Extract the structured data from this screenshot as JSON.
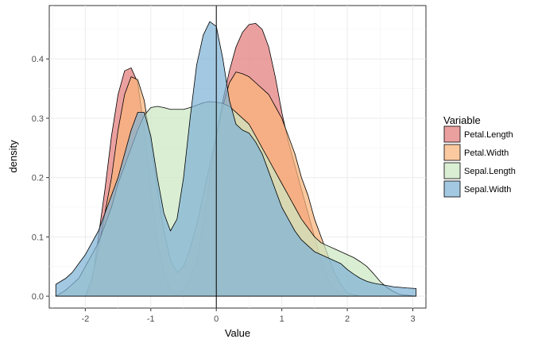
{
  "chart_data": {
    "type": "area",
    "xlabel": "Value",
    "ylabel": "density",
    "xlim": [
      -2.55,
      3.2
    ],
    "ylim": [
      -0.02,
      0.49
    ],
    "x_ticks": [
      -2,
      -1,
      0,
      1,
      2,
      3
    ],
    "x_tick_labels": [
      "-2",
      "-1",
      "0",
      "1",
      "2",
      "3"
    ],
    "y_ticks": [
      0.0,
      0.1,
      0.2,
      0.3,
      0.4
    ],
    "y_tick_labels": [
      "0.0",
      "0.1",
      "0.2",
      "0.3",
      "0.4"
    ],
    "vline_x": 0,
    "grid": true,
    "legend": {
      "title": "Variable",
      "placement": "right"
    },
    "series": [
      {
        "name": "Petal.Length",
        "color": "#E37B7B",
        "points": [
          [
            -2.45,
            0.0
          ],
          [
            -2.2,
            0.0
          ],
          [
            -2.0,
            0.0
          ],
          [
            -1.9,
            0.02
          ],
          [
            -1.8,
            0.1
          ],
          [
            -1.7,
            0.18
          ],
          [
            -1.6,
            0.27
          ],
          [
            -1.5,
            0.34
          ],
          [
            -1.4,
            0.38
          ],
          [
            -1.3,
            0.385
          ],
          [
            -1.2,
            0.36
          ],
          [
            -1.1,
            0.28
          ],
          [
            -1.0,
            0.18
          ],
          [
            -0.9,
            0.09
          ],
          [
            -0.8,
            0.04
          ],
          [
            -0.7,
            0.01
          ],
          [
            -0.6,
            0.003
          ],
          [
            -0.5,
            0.01
          ],
          [
            -0.4,
            0.03
          ],
          [
            -0.3,
            0.06
          ],
          [
            -0.2,
            0.12
          ],
          [
            -0.1,
            0.2
          ],
          [
            0.0,
            0.27
          ],
          [
            0.1,
            0.33
          ],
          [
            0.2,
            0.38
          ],
          [
            0.3,
            0.42
          ],
          [
            0.4,
            0.445
          ],
          [
            0.5,
            0.458
          ],
          [
            0.6,
            0.46
          ],
          [
            0.7,
            0.45
          ],
          [
            0.8,
            0.42
          ],
          [
            0.9,
            0.37
          ],
          [
            1.0,
            0.31
          ],
          [
            1.1,
            0.26
          ],
          [
            1.2,
            0.22
          ],
          [
            1.3,
            0.18
          ],
          [
            1.4,
            0.14
          ],
          [
            1.5,
            0.1
          ],
          [
            1.6,
            0.06
          ],
          [
            1.7,
            0.03
          ],
          [
            1.8,
            0.01
          ],
          [
            1.9,
            0.003
          ],
          [
            2.0,
            0.0
          ],
          [
            2.2,
            0.0
          ],
          [
            2.5,
            0.0
          ],
          [
            3.05,
            0.0
          ]
        ]
      },
      {
        "name": "Petal.Width",
        "color": "#F9B47A",
        "points": [
          [
            -2.45,
            0.0
          ],
          [
            -2.2,
            0.0
          ],
          [
            -2.0,
            0.0
          ],
          [
            -1.9,
            0.03
          ],
          [
            -1.8,
            0.08
          ],
          [
            -1.7,
            0.14
          ],
          [
            -1.6,
            0.2
          ],
          [
            -1.5,
            0.28
          ],
          [
            -1.4,
            0.34
          ],
          [
            -1.3,
            0.37
          ],
          [
            -1.2,
            0.365
          ],
          [
            -1.1,
            0.33
          ],
          [
            -1.0,
            0.26
          ],
          [
            -0.9,
            0.18
          ],
          [
            -0.8,
            0.11
          ],
          [
            -0.7,
            0.06
          ],
          [
            -0.6,
            0.04
          ],
          [
            -0.5,
            0.05
          ],
          [
            -0.4,
            0.08
          ],
          [
            -0.3,
            0.12
          ],
          [
            -0.2,
            0.17
          ],
          [
            -0.1,
            0.22
          ],
          [
            0.0,
            0.27
          ],
          [
            0.1,
            0.32
          ],
          [
            0.2,
            0.36
          ],
          [
            0.3,
            0.378
          ],
          [
            0.4,
            0.375
          ],
          [
            0.5,
            0.37
          ],
          [
            0.6,
            0.36
          ],
          [
            0.7,
            0.35
          ],
          [
            0.8,
            0.34
          ],
          [
            0.9,
            0.32
          ],
          [
            1.0,
            0.3
          ],
          [
            1.1,
            0.27
          ],
          [
            1.2,
            0.24
          ],
          [
            1.3,
            0.2
          ],
          [
            1.4,
            0.17
          ],
          [
            1.5,
            0.13
          ],
          [
            1.6,
            0.1
          ],
          [
            1.7,
            0.07
          ],
          [
            1.8,
            0.04
          ],
          [
            1.9,
            0.02
          ],
          [
            2.0,
            0.005
          ],
          [
            2.2,
            0.0
          ],
          [
            2.5,
            0.0
          ],
          [
            3.05,
            0.0
          ]
        ]
      },
      {
        "name": "Sepal.Length",
        "color": "#CCE8C4",
        "points": [
          [
            -2.45,
            0.0
          ],
          [
            -2.3,
            0.01
          ],
          [
            -2.2,
            0.02
          ],
          [
            -2.1,
            0.03
          ],
          [
            -2.0,
            0.05
          ],
          [
            -1.9,
            0.07
          ],
          [
            -1.8,
            0.09
          ],
          [
            -1.7,
            0.12
          ],
          [
            -1.6,
            0.15
          ],
          [
            -1.5,
            0.19
          ],
          [
            -1.4,
            0.22
          ],
          [
            -1.3,
            0.25
          ],
          [
            -1.2,
            0.28
          ],
          [
            -1.1,
            0.305
          ],
          [
            -1.0,
            0.318
          ],
          [
            -0.9,
            0.32
          ],
          [
            -0.8,
            0.318
          ],
          [
            -0.7,
            0.315
          ],
          [
            -0.6,
            0.315
          ],
          [
            -0.5,
            0.315
          ],
          [
            -0.4,
            0.318
          ],
          [
            -0.3,
            0.322
          ],
          [
            -0.2,
            0.326
          ],
          [
            -0.1,
            0.328
          ],
          [
            0.0,
            0.327
          ],
          [
            0.1,
            0.325
          ],
          [
            0.2,
            0.32
          ],
          [
            0.3,
            0.31
          ],
          [
            0.4,
            0.3
          ],
          [
            0.5,
            0.29
          ],
          [
            0.6,
            0.27
          ],
          [
            0.7,
            0.25
          ],
          [
            0.8,
            0.23
          ],
          [
            0.9,
            0.21
          ],
          [
            1.0,
            0.19
          ],
          [
            1.1,
            0.17
          ],
          [
            1.2,
            0.15
          ],
          [
            1.3,
            0.13
          ],
          [
            1.4,
            0.115
          ],
          [
            1.5,
            0.1
          ],
          [
            1.6,
            0.09
          ],
          [
            1.7,
            0.085
          ],
          [
            1.8,
            0.08
          ],
          [
            1.9,
            0.075
          ],
          [
            2.0,
            0.07
          ],
          [
            2.1,
            0.065
          ],
          [
            2.2,
            0.058
          ],
          [
            2.3,
            0.05
          ],
          [
            2.4,
            0.038
          ],
          [
            2.5,
            0.025
          ],
          [
            2.6,
            0.015
          ],
          [
            2.7,
            0.008
          ],
          [
            2.8,
            0.003
          ],
          [
            3.05,
            0.0
          ]
        ]
      },
      {
        "name": "Sepal.Width",
        "color": "#7FB3D5",
        "points": [
          [
            -2.45,
            0.02
          ],
          [
            -2.3,
            0.03
          ],
          [
            -2.2,
            0.04
          ],
          [
            -2.1,
            0.055
          ],
          [
            -2.0,
            0.07
          ],
          [
            -1.9,
            0.09
          ],
          [
            -1.8,
            0.11
          ],
          [
            -1.7,
            0.14
          ],
          [
            -1.6,
            0.17
          ],
          [
            -1.5,
            0.2
          ],
          [
            -1.4,
            0.24
          ],
          [
            -1.3,
            0.28
          ],
          [
            -1.2,
            0.31
          ],
          [
            -1.1,
            0.31
          ],
          [
            -1.0,
            0.27
          ],
          [
            -0.9,
            0.2
          ],
          [
            -0.8,
            0.14
          ],
          [
            -0.7,
            0.11
          ],
          [
            -0.6,
            0.13
          ],
          [
            -0.5,
            0.2
          ],
          [
            -0.4,
            0.3
          ],
          [
            -0.3,
            0.39
          ],
          [
            -0.2,
            0.44
          ],
          [
            -0.1,
            0.463
          ],
          [
            0.0,
            0.455
          ],
          [
            0.1,
            0.4
          ],
          [
            0.2,
            0.33
          ],
          [
            0.3,
            0.29
          ],
          [
            0.4,
            0.28
          ],
          [
            0.5,
            0.275
          ],
          [
            0.6,
            0.26
          ],
          [
            0.7,
            0.24
          ],
          [
            0.8,
            0.21
          ],
          [
            0.9,
            0.18
          ],
          [
            1.0,
            0.15
          ],
          [
            1.1,
            0.13
          ],
          [
            1.2,
            0.11
          ],
          [
            1.3,
            0.095
          ],
          [
            1.4,
            0.085
          ],
          [
            1.5,
            0.075
          ],
          [
            1.6,
            0.07
          ],
          [
            1.7,
            0.065
          ],
          [
            1.8,
            0.06
          ],
          [
            1.9,
            0.055
          ],
          [
            2.0,
            0.045
          ],
          [
            2.1,
            0.037
          ],
          [
            2.2,
            0.03
          ],
          [
            2.3,
            0.025
          ],
          [
            2.4,
            0.022
          ],
          [
            2.5,
            0.02
          ],
          [
            2.6,
            0.018
          ],
          [
            2.7,
            0.016
          ],
          [
            2.8,
            0.015
          ],
          [
            2.9,
            0.014
          ],
          [
            3.05,
            0.013
          ]
        ]
      }
    ]
  }
}
